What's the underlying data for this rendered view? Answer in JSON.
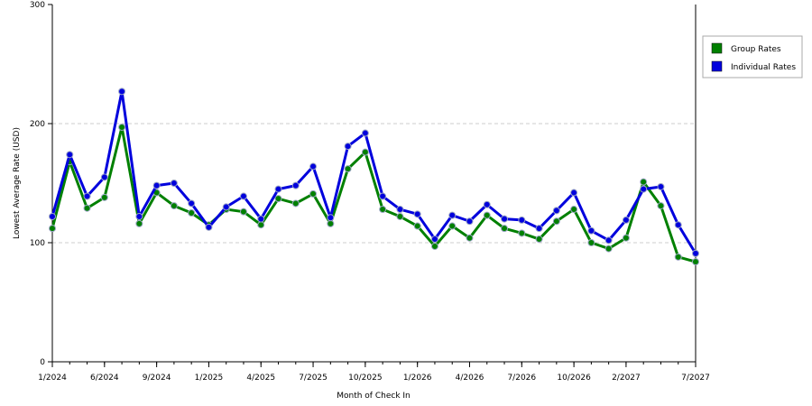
{
  "chart_data": {
    "type": "line",
    "title": "",
    "xlabel": "Month of Check In",
    "ylabel": "Lowest Average Rate (USD)",
    "ylim": [
      0,
      300
    ],
    "yticks": [
      "0",
      "100",
      "200",
      "300"
    ],
    "grid": "horizontal dashed",
    "legend_position": "right",
    "x_tick_labels": [
      {
        "index": 0,
        "label": "1/2024"
      },
      {
        "index": 3,
        "label": "6/2024"
      },
      {
        "index": 6,
        "label": "9/2024"
      },
      {
        "index": 9,
        "label": "1/2025"
      },
      {
        "index": 12,
        "label": "4/2025"
      },
      {
        "index": 15,
        "label": "7/2025"
      },
      {
        "index": 18,
        "label": "10/2025"
      },
      {
        "index": 21,
        "label": "1/2026"
      },
      {
        "index": 24,
        "label": "4/2026"
      },
      {
        "index": 27,
        "label": "7/2026"
      },
      {
        "index": 30,
        "label": "10/2026"
      },
      {
        "index": 33,
        "label": "2/2027"
      },
      {
        "index": 37,
        "label": "7/2027"
      }
    ],
    "point_count": 38,
    "series": [
      {
        "name": "Group Rates",
        "color": "#008000",
        "values": [
          112,
          168,
          129,
          138,
          197,
          116,
          142,
          131,
          125,
          115,
          128,
          126,
          115,
          137,
          133,
          141,
          116,
          162,
          176,
          128,
          122,
          114,
          97,
          114,
          104,
          123,
          112,
          108,
          103,
          118,
          128,
          100,
          95,
          104,
          151,
          131,
          88,
          84
        ]
      },
      {
        "name": "Individual Rates",
        "color": "#0000dd",
        "values": [
          122,
          174,
          139,
          155,
          227,
          122,
          148,
          150,
          133,
          113,
          130,
          139,
          120,
          145,
          148,
          164,
          121,
          181,
          192,
          139,
          128,
          124,
          103,
          123,
          118,
          132,
          120,
          119,
          112,
          127,
          142,
          110,
          102,
          119,
          145,
          147,
          115,
          91
        ]
      }
    ]
  }
}
